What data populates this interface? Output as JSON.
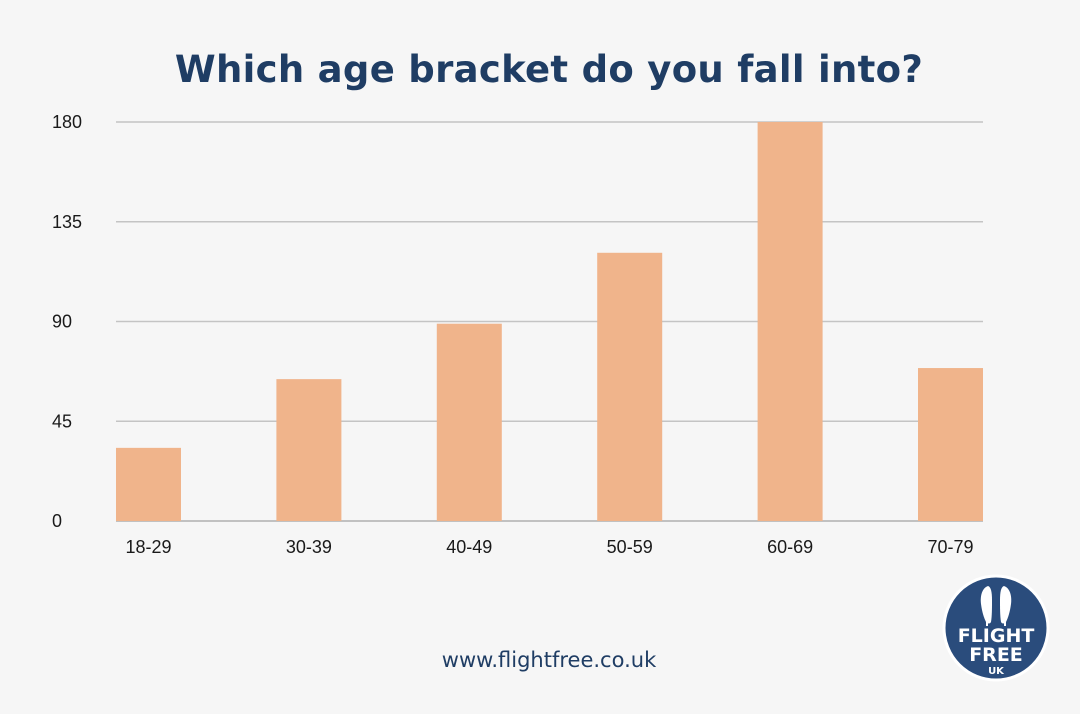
{
  "chart_data": {
    "type": "bar",
    "title": "Which age bracket do you fall into?",
    "categories": [
      "18-29",
      "30-39",
      "40-49",
      "50-59",
      "60-69",
      "70-79"
    ],
    "values": [
      33,
      64,
      89,
      121,
      180,
      69
    ],
    "ylim": [
      0,
      180
    ],
    "yticks": [
      0,
      45,
      90,
      135,
      180
    ],
    "xlabel": "",
    "ylabel": "",
    "grid": true,
    "legend": "none"
  },
  "colors": {
    "bar": "#f0b48b",
    "title": "#1f3d64",
    "grid": "#c4c4c4",
    "background": "#f6f6f6",
    "logo": "#2a4c7c"
  },
  "footer": {
    "website": "www.flightfree.co.uk"
  },
  "logo": {
    "line1": "FLIGHT",
    "line2": "FREE",
    "line3": "UK",
    "icon": "twin-birds-icon"
  }
}
